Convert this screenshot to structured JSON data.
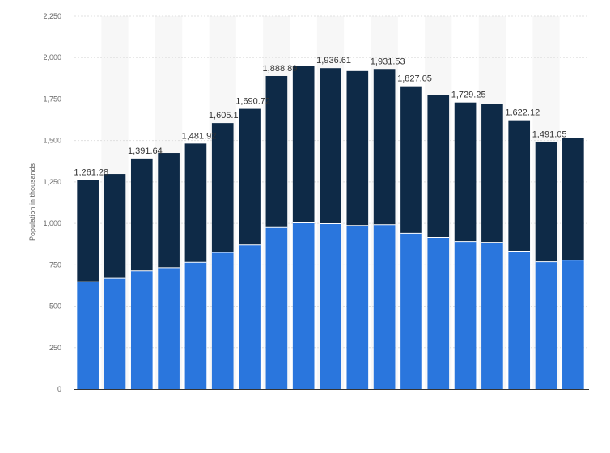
{
  "chart_data": {
    "type": "bar",
    "stacked": true,
    "title": "",
    "xlabel": "",
    "ylabel": "Population in thousands",
    "ylim": [
      0,
      2250
    ],
    "yticks": [
      0,
      250,
      500,
      750,
      1000,
      1250,
      1500,
      1750,
      2000,
      2250
    ],
    "ytick_labels": [
      "0",
      "250",
      "500",
      "750",
      "1,000",
      "1,250",
      "1,500",
      "1,750",
      "2,000",
      "2,250"
    ],
    "grid": true,
    "legend": false,
    "categories": [
      "",
      "",
      "",
      "",
      "",
      "",
      "",
      "",
      "",
      "",
      "",
      "",
      "",
      "",
      "",
      "",
      "",
      "",
      ""
    ],
    "series": [
      {
        "color": "#2a76dd",
        "values": [
          648,
          668,
          714,
          733,
          765,
          825,
          870,
          975,
          1003,
          998,
          987,
          992,
          940,
          915,
          890,
          885,
          832,
          768,
          778
        ]
      },
      {
        "color": "#0e2a47",
        "values": [
          613.28,
          630,
          677.64,
          692,
          716.92,
          780.1,
          820.72,
          913.89,
          947,
          938.61,
          932,
          939.53,
          887.05,
          860,
          839.25,
          837,
          790.12,
          723.05,
          737
        ]
      }
    ],
    "totals": [
      1261.28,
      1298,
      1391.64,
      1425,
      1481.92,
      1605.1,
      1690.72,
      1888.89,
      1950,
      1936.61,
      1919,
      1931.53,
      1827.05,
      1775,
      1729.25,
      1722,
      1622.12,
      1491.05,
      1515
    ],
    "total_labels": [
      "1,261.28",
      "",
      "1,391.64",
      "",
      "1,481.92",
      "1,605.1",
      "1,690.72",
      "1,888.89",
      "",
      "1,936.61",
      "",
      "1,931.53",
      "1,827.05",
      "",
      "1,729.25",
      "",
      "1,622.12",
      "1,491.05",
      ""
    ],
    "colors": {
      "grid": "#e0e0e0",
      "band": "#f7f7f7",
      "baseline": "#333333"
    }
  }
}
